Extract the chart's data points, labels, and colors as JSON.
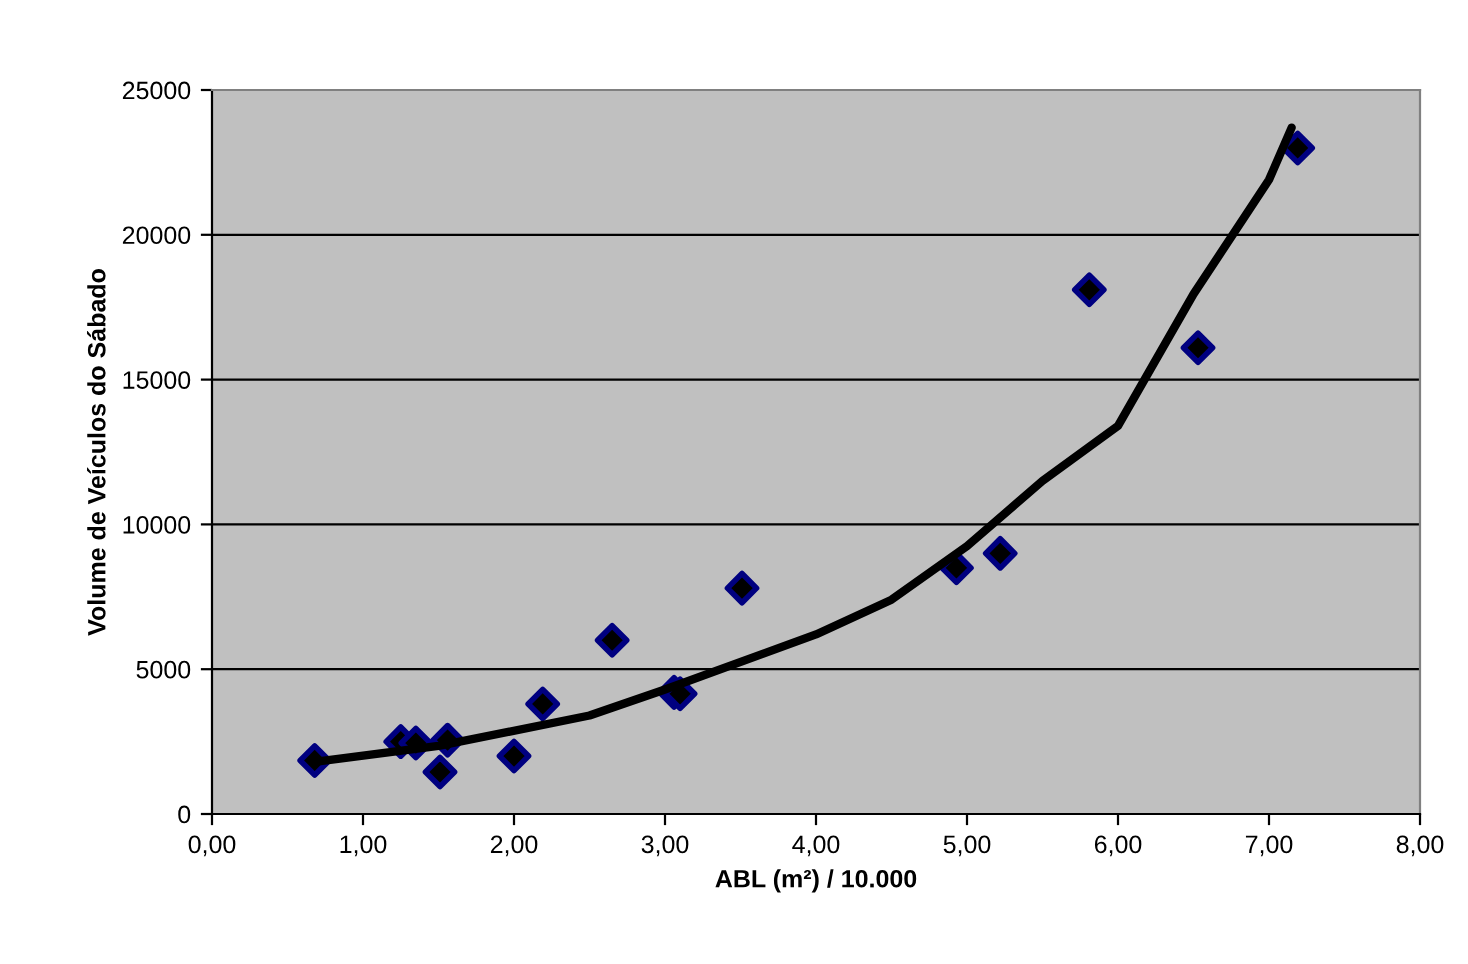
{
  "chart_data": {
    "type": "scatter",
    "xlabel": "ABL (m²) / 10.000",
    "ylabel": "Volume de Veículos do Sábado",
    "xlim": [
      0,
      8
    ],
    "ylim": [
      0,
      25000
    ],
    "xticks": [
      {
        "value": 0,
        "label": "0,00"
      },
      {
        "value": 1,
        "label": "1,00"
      },
      {
        "value": 2,
        "label": "2,00"
      },
      {
        "value": 3,
        "label": "3,00"
      },
      {
        "value": 4,
        "label": "4,00"
      },
      {
        "value": 5,
        "label": "5,00"
      },
      {
        "value": 6,
        "label": "6,00"
      },
      {
        "value": 7,
        "label": "7,00"
      },
      {
        "value": 8,
        "label": "8,00"
      }
    ],
    "yticks": [
      0,
      5000,
      10000,
      15000,
      20000,
      25000
    ],
    "grid": "y",
    "series": [
      {
        "marker": "diamond",
        "color": "#000080",
        "x": [
          0.68,
          1.25,
          1.35,
          1.51,
          1.56,
          2.0,
          2.19,
          2.65,
          3.06,
          3.1,
          3.51,
          4.93,
          5.22,
          5.81,
          6.53,
          7.19
        ],
        "values": [
          1850,
          2500,
          2450,
          1450,
          2550,
          2000,
          3800,
          6000,
          4200,
          4150,
          7800,
          8500,
          9000,
          18100,
          16100,
          23000
        ]
      },
      {
        "type": "line",
        "marker": "none",
        "line_style": "solid",
        "color": "#000000",
        "x": [
          0.68,
          1.5,
          2.5,
          3.0,
          4.0,
          4.5,
          5.0,
          5.5,
          6.0,
          6.5,
          7.0,
          7.15
        ],
        "values": [
          1800,
          2350,
          3400,
          4300,
          6200,
          7400,
          9250,
          11500,
          13400,
          17950,
          21900,
          23700
        ]
      }
    ]
  }
}
